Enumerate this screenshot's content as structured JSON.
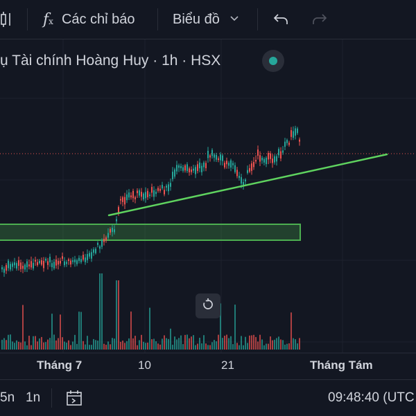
{
  "toolbar": {
    "indicators_label": "Các chỉ báo",
    "chart_type_label": "Biểu đồ",
    "icons": [
      "chart-type-icon",
      "fx-icon",
      "chevron-down-icon",
      "undo-icon",
      "redo-icon"
    ]
  },
  "symbol": {
    "title": "ụ Tài chính Hoàng Huy · 1h · HSX",
    "status_color": "#26a69a"
  },
  "colors": {
    "up": "#26a69a",
    "down": "#ef5350",
    "trendline": "#5fd35f",
    "zone_border": "#4caf50",
    "price_line": "#ef5350"
  },
  "time_axis": {
    "ticks": [
      {
        "label": "Tháng 7",
        "bold": true
      },
      {
        "label": "10",
        "bold": false
      },
      {
        "label": "21",
        "bold": false
      },
      {
        "label": "Tháng Tám",
        "bold": true
      }
    ]
  },
  "bottom": {
    "interval_5": "5n",
    "interval_1": "1n",
    "clock": "09:48:40 (UTC"
  }
}
